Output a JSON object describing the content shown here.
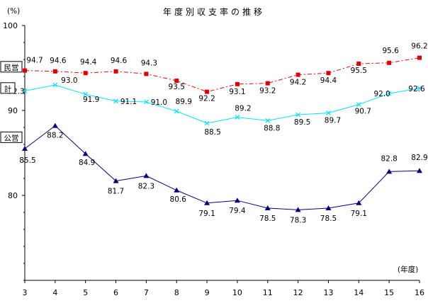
{
  "chart_data": {
    "type": "line",
    "title": "年度別収支率の推移",
    "ylabel": "(%)",
    "xlabel": "(年度)",
    "ylim": [
      70,
      100
    ],
    "yticks": [
      80,
      90,
      100
    ],
    "x": [
      3,
      4,
      5,
      6,
      7,
      8,
      9,
      10,
      11,
      12,
      13,
      14,
      15,
      16
    ],
    "grid": false,
    "legend": "series tags on left axis",
    "series": [
      {
        "name": "民営",
        "color": "#ff0000",
        "marker_color": "#e00000",
        "line_style": "dash-dot",
        "marker": "square",
        "values": [
          94.7,
          94.6,
          94.4,
          94.6,
          94.3,
          93.5,
          92.2,
          93.1,
          93.2,
          94.2,
          94.4,
          95.5,
          95.6,
          96.2
        ]
      },
      {
        "name": "計",
        "color": "#00e5ff",
        "marker_color": "#00e5ff",
        "line_style": "solid",
        "marker": "cross",
        "values": [
          92.3,
          93.0,
          91.9,
          91.1,
          91.0,
          89.9,
          88.5,
          89.2,
          88.8,
          89.5,
          89.7,
          90.7,
          92.0,
          92.6
        ]
      },
      {
        "name": "公営",
        "color": "#000080",
        "marker_color": "#000080",
        "line_style": "solid",
        "marker": "triangle",
        "values": [
          85.5,
          88.2,
          84.9,
          81.7,
          82.3,
          80.6,
          79.1,
          79.4,
          78.5,
          78.3,
          78.5,
          79.1,
          82.8,
          82.9
        ]
      }
    ]
  }
}
